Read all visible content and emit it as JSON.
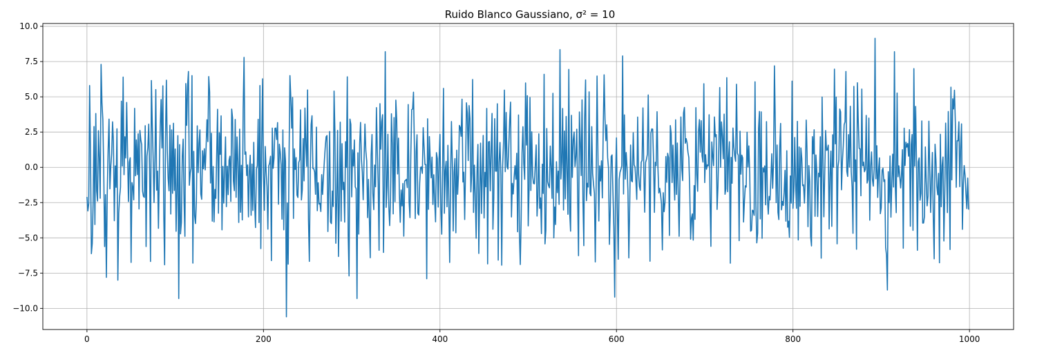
{
  "chart_data": {
    "type": "line",
    "title": "Ruido Blanco Gaussiano, σ² = 10",
    "xlabel": "",
    "ylabel": "",
    "xlim": [
      -50,
      1050
    ],
    "ylim": [
      -11.5,
      10.2
    ],
    "x_ticks": [
      0,
      200,
      400,
      600,
      800,
      1000
    ],
    "x_tick_labels": [
      "0",
      "200",
      "400",
      "600",
      "800",
      "1000"
    ],
    "y_ticks": [
      10.0,
      7.5,
      5.0,
      2.5,
      0.0,
      -2.5,
      -5.0,
      -7.5,
      -10.0
    ],
    "y_tick_labels": [
      "10.0",
      "7.5",
      "5.0",
      "2.5",
      "0.0",
      "−2.5",
      "−5.0",
      "−7.5",
      "−10.0"
    ],
    "grid": true,
    "series": [
      {
        "color": "#1f77b4",
        "x_start": 0,
        "x_step": 1,
        "n_points": 1000,
        "variance": 10,
        "key_points": [
          {
            "x": 0,
            "y": -2.1
          },
          {
            "x": 3,
            "y": 5.8
          },
          {
            "x": 6,
            "y": -5.4
          },
          {
            "x": 16,
            "y": 7.3
          },
          {
            "x": 22,
            "y": -7.8
          },
          {
            "x": 35,
            "y": -8.0
          },
          {
            "x": 41,
            "y": 6.4
          },
          {
            "x": 104,
            "y": -9.3
          },
          {
            "x": 115,
            "y": 6.8
          },
          {
            "x": 178,
            "y": 7.8
          },
          {
            "x": 226,
            "y": -10.6
          },
          {
            "x": 297,
            "y": -7.7
          },
          {
            "x": 306,
            "y": -9.3
          },
          {
            "x": 338,
            "y": 8.2
          },
          {
            "x": 385,
            "y": -7.9
          },
          {
            "x": 536,
            "y": 8.35
          },
          {
            "x": 598,
            "y": -9.2
          },
          {
            "x": 607,
            "y": 7.9
          },
          {
            "x": 779,
            "y": 7.2
          },
          {
            "x": 860,
            "y": 6.8
          },
          {
            "x": 893,
            "y": 9.15
          },
          {
            "x": 907,
            "y": -8.7
          },
          {
            "x": 915,
            "y": 8.2
          },
          {
            "x": 999,
            "y": -3.0
          }
        ]
      }
    ]
  }
}
